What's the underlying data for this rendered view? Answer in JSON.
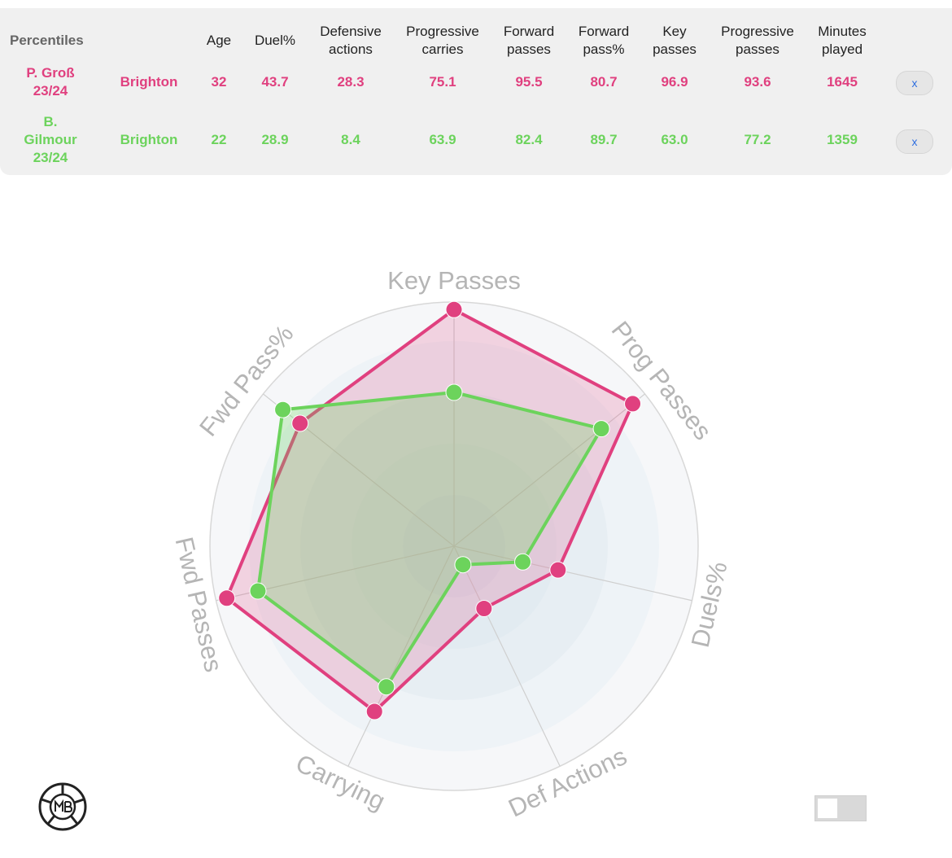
{
  "table": {
    "title": "Percentiles",
    "columns": [
      {
        "line1": "Age",
        "line2": ""
      },
      {
        "line1": "Duel%",
        "line2": ""
      },
      {
        "line1": "Defensive",
        "line2": "actions"
      },
      {
        "line1": "Progressive",
        "line2": "carries"
      },
      {
        "line1": "Forward",
        "line2": "passes"
      },
      {
        "line1": "Forward",
        "line2": "pass%"
      },
      {
        "line1": "Key",
        "line2": "passes"
      },
      {
        "line1": "Progressive",
        "line2": "passes"
      },
      {
        "line1": "Minutes",
        "line2": "played"
      }
    ],
    "rows": [
      {
        "name_lines": [
          "P. Groß",
          "23/24"
        ],
        "team": "Brighton",
        "color": "#e0407f",
        "values": [
          "32",
          "43.7",
          "28.3",
          "75.1",
          "95.5",
          "80.7",
          "96.9",
          "93.6",
          "1645"
        ],
        "remove_label": "x"
      },
      {
        "name_lines": [
          "B.",
          "Gilmour",
          "23/24"
        ],
        "team": "Brighton",
        "color": "#6cd35c",
        "values": [
          "22",
          "28.9",
          "8.4",
          "63.9",
          "82.4",
          "89.7",
          "63.0",
          "77.2",
          "1359"
        ],
        "remove_label": "x"
      }
    ]
  },
  "chart_data": {
    "type": "radar",
    "axes": [
      "Key Passes",
      "Prog Passes",
      "Duels%",
      "Def Actions",
      "Carrying",
      "Fwd Passes",
      "Fwd Pass%"
    ],
    "range": [
      0,
      100
    ],
    "series": [
      {
        "name": "P. Groß 23/24",
        "color": "#e0407f",
        "values": [
          96.9,
          93.6,
          43.7,
          28.3,
          75.1,
          95.5,
          80.7
        ]
      },
      {
        "name": "B. Gilmour 23/24",
        "color": "#6cd35c",
        "values": [
          63.0,
          77.2,
          28.9,
          8.4,
          63.9,
          82.4,
          89.7
        ]
      }
    ]
  },
  "logo_icon": "mb-ball-logo",
  "toggle_icon": "toggle-switch"
}
